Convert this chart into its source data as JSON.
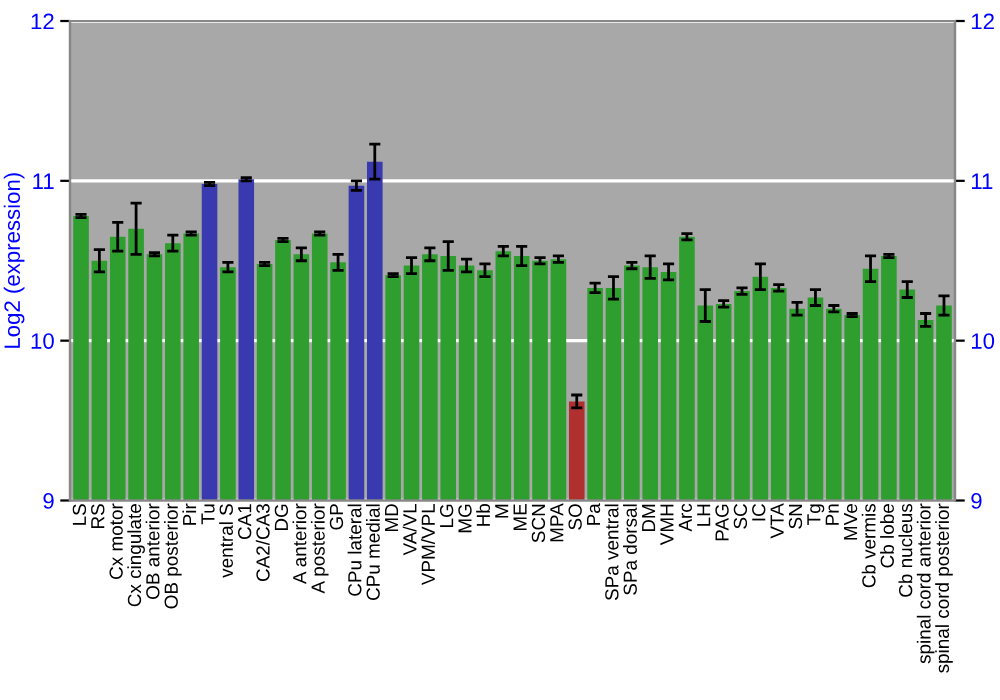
{
  "chart_data": {
    "type": "bar",
    "ylabel": "Log2 (expression)",
    "categories": [
      "LS",
      "RS",
      "Cx motor",
      "Cx cingulate",
      "OB anterior",
      "OB posterior",
      "Pir",
      "Tu",
      "ventral S",
      "CA1",
      "CA2/CA3",
      "DG",
      "A anterior",
      "A posterior",
      "GP",
      "CPu lateral",
      "CPu medial",
      "MD",
      "VA/VL",
      "VPM/VPL",
      "LG",
      "MG",
      "Hb",
      "M",
      "ME",
      "SCN",
      "MPA",
      "SO",
      "Pa",
      "SPa ventral",
      "SPa dorsal",
      "DM",
      "VMH",
      "Arc",
      "LH",
      "PAG",
      "SC",
      "IC",
      "VTA",
      "SN",
      "Tg",
      "Pn",
      "MVe",
      "Cb vermis",
      "Cb lobe",
      "Cb nucleus",
      "spinal cord anterior",
      "spinal cord posterior"
    ],
    "values": [
      10.78,
      10.5,
      10.65,
      10.7,
      10.54,
      10.61,
      10.67,
      10.98,
      10.46,
      11.01,
      10.48,
      10.63,
      10.54,
      10.67,
      10.49,
      10.97,
      11.12,
      10.41,
      10.47,
      10.54,
      10.53,
      10.47,
      10.44,
      10.56,
      10.53,
      10.5,
      10.51,
      9.62,
      10.33,
      10.33,
      10.47,
      10.46,
      10.43,
      10.65,
      10.22,
      10.23,
      10.31,
      10.4,
      10.33,
      10.2,
      10.27,
      10.2,
      10.16,
      10.45,
      10.53,
      10.32,
      10.13,
      10.22
    ],
    "errors": [
      0.01,
      0.07,
      0.09,
      0.16,
      0.01,
      0.05,
      0.01,
      0.01,
      0.03,
      0.01,
      0.01,
      0.01,
      0.04,
      0.01,
      0.05,
      0.03,
      0.11,
      0.01,
      0.05,
      0.04,
      0.09,
      0.04,
      0.04,
      0.03,
      0.06,
      0.02,
      0.02,
      0.04,
      0.03,
      0.07,
      0.02,
      0.07,
      0.05,
      0.02,
      0.1,
      0.02,
      0.02,
      0.08,
      0.02,
      0.04,
      0.05,
      0.02,
      0.01,
      0.08,
      0.01,
      0.05,
      0.04,
      0.06
    ],
    "colors": [
      "#2e9e2e",
      "#2e9e2e",
      "#2e9e2e",
      "#2e9e2e",
      "#2e9e2e",
      "#2e9e2e",
      "#2e9e2e",
      "#3a3ab0",
      "#2e9e2e",
      "#3a3ab0",
      "#2e9e2e",
      "#2e9e2e",
      "#2e9e2e",
      "#2e9e2e",
      "#2e9e2e",
      "#3a3ab0",
      "#3a3ab0",
      "#2e9e2e",
      "#2e9e2e",
      "#2e9e2e",
      "#2e9e2e",
      "#2e9e2e",
      "#2e9e2e",
      "#2e9e2e",
      "#2e9e2e",
      "#2e9e2e",
      "#2e9e2e",
      "#b03030",
      "#2e9e2e",
      "#2e9e2e",
      "#2e9e2e",
      "#2e9e2e",
      "#2e9e2e",
      "#2e9e2e",
      "#2e9e2e",
      "#2e9e2e",
      "#2e9e2e",
      "#2e9e2e",
      "#2e9e2e",
      "#2e9e2e",
      "#2e9e2e",
      "#2e9e2e",
      "#2e9e2e",
      "#2e9e2e",
      "#2e9e2e",
      "#2e9e2e",
      "#2e9e2e",
      "#2e9e2e"
    ],
    "ylim": [
      9,
      12
    ],
    "yticks": [
      9,
      10,
      11,
      12
    ],
    "y2lim": [
      9,
      12
    ],
    "y2ticks": [
      9,
      10,
      11,
      12
    ],
    "grid": "y"
  }
}
